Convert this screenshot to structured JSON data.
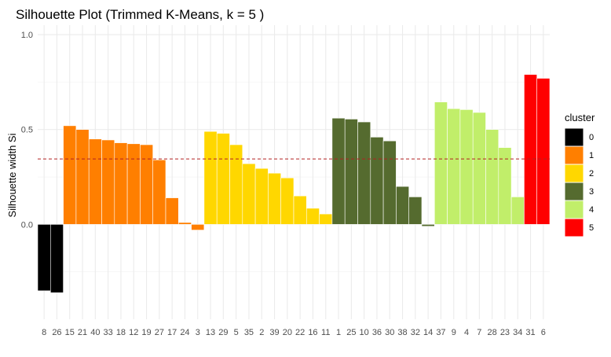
{
  "chart_data": {
    "type": "bar",
    "title": "Silhouette Plot (Trimmed K-Means, k = 5 )",
    "xlabel": "",
    "ylabel": "Silhouette width Si",
    "ylim": [
      -0.5,
      1.05
    ],
    "yticks": [
      0.0,
      0.5,
      1.0
    ],
    "ytick_labels": [
      "0.0",
      "0.5",
      "1.0"
    ],
    "grid": true,
    "reference_line": {
      "value": 0.345,
      "color": "#b22222",
      "style": "dashed"
    },
    "categories": [
      "8",
      "26",
      "15",
      "21",
      "40",
      "33",
      "18",
      "12",
      "19",
      "27",
      "17",
      "24",
      "3",
      "13",
      "29",
      "5",
      "35",
      "2",
      "39",
      "20",
      "22",
      "16",
      "11",
      "1",
      "25",
      "10",
      "36",
      "30",
      "38",
      "32",
      "14",
      "37",
      "9",
      "4",
      "7",
      "28",
      "23",
      "34",
      "31",
      "6"
    ],
    "values": [
      -0.35,
      -0.36,
      0.52,
      0.5,
      0.45,
      0.445,
      0.43,
      0.425,
      0.42,
      0.34,
      0.14,
      0.01,
      -0.03,
      0.49,
      0.48,
      0.42,
      0.32,
      0.295,
      0.27,
      0.245,
      0.15,
      0.085,
      0.055,
      0.56,
      0.555,
      0.54,
      0.46,
      0.44,
      0.2,
      0.145,
      -0.01,
      0.645,
      0.61,
      0.605,
      0.59,
      0.5,
      0.405,
      0.145,
      0.79,
      0.77
    ],
    "cluster": [
      "0",
      "0",
      "1",
      "1",
      "1",
      "1",
      "1",
      "1",
      "1",
      "1",
      "1",
      "1",
      "1",
      "2",
      "2",
      "2",
      "2",
      "2",
      "2",
      "2",
      "2",
      "2",
      "2",
      "3",
      "3",
      "3",
      "3",
      "3",
      "3",
      "3",
      "3",
      "4",
      "4",
      "4",
      "4",
      "4",
      "4",
      "4",
      "5",
      "5"
    ],
    "legend": {
      "title": "cluster",
      "placement": "right",
      "entries": [
        {
          "label": "0",
          "color": "#000000"
        },
        {
          "label": "1",
          "color": "#ff7f00"
        },
        {
          "label": "2",
          "color": "#ffd700"
        },
        {
          "label": "3",
          "color": "#556b2f"
        },
        {
          "label": "4",
          "color": "#c1ee6a"
        },
        {
          "label": "5",
          "color": "#ff0000"
        }
      ]
    }
  }
}
